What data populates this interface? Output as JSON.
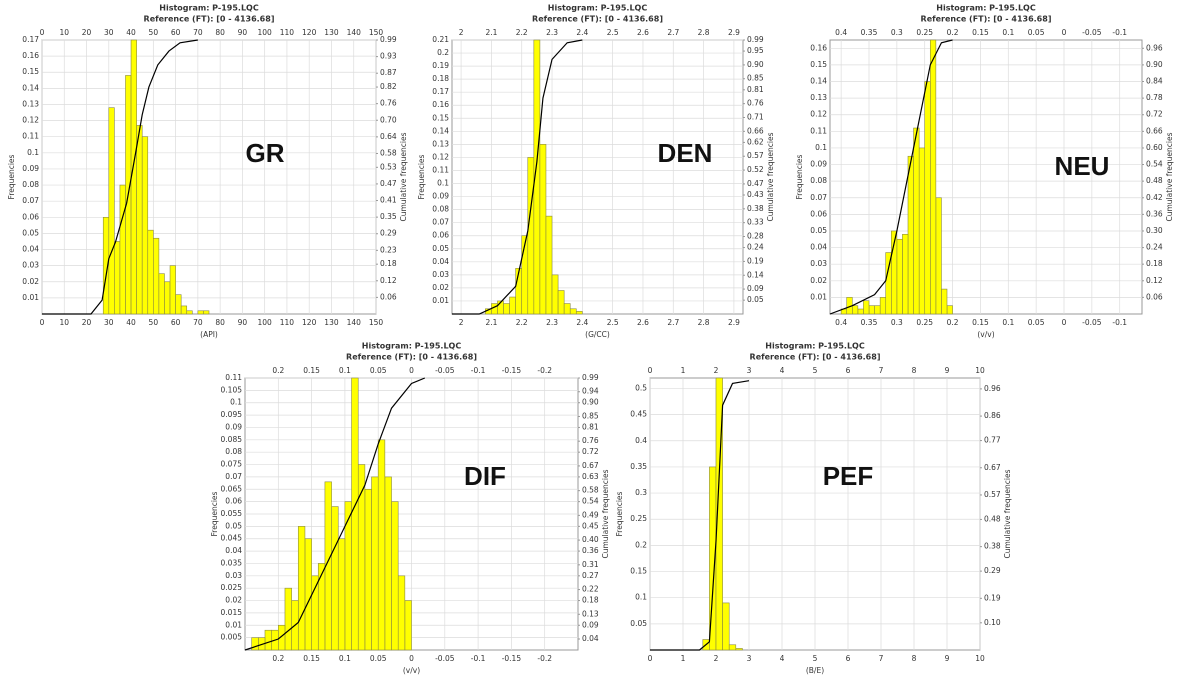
{
  "chart_data": [
    {
      "type": "histogram",
      "title": "Histogram: P-195.LQC",
      "subtitle": "Reference (FT): [0 - 4136.68]",
      "label": "GR",
      "x_label": "(API)",
      "y_label": "Frequencies",
      "y2_label": "Cumulative frequencies",
      "color": "#ffff00",
      "bins": [
        27.5,
        30,
        32.5,
        35,
        37.5,
        40,
        42.5,
        45,
        47.5,
        50,
        52.5,
        55,
        57.5,
        60,
        62.5,
        65,
        67.5,
        70,
        72.5,
        75
      ],
      "values": [
        0.06,
        0.128,
        0.045,
        0.08,
        0.148,
        0.17,
        0.117,
        0.11,
        0.052,
        0.047,
        0.025,
        0.02,
        0.03,
        0.012,
        0.005,
        0.002,
        0,
        0.002,
        0.002
      ],
      "line": {
        "axis": "y2",
        "color": "#000000",
        "x": [
          0,
          22,
          27,
          30,
          33,
          38,
          42,
          45,
          48,
          52,
          57,
          62,
          70
        ],
        "values": [
          0,
          0,
          0.05,
          0.2,
          0.26,
          0.4,
          0.58,
          0.72,
          0.82,
          0.9,
          0.95,
          0.98,
          0.99
        ]
      },
      "xlim": [
        0,
        150
      ],
      "xticks": [
        0,
        10,
        20,
        30,
        40,
        50,
        60,
        70,
        80,
        90,
        100,
        110,
        120,
        130,
        140,
        150
      ],
      "ylim": [
        0,
        0.17
      ],
      "yticks": [
        0.01,
        0.02,
        0.03,
        0.04,
        0.05,
        0.06,
        0.07,
        0.08,
        0.09,
        0.1,
        0.11,
        0.12,
        0.13,
        0.14,
        0.15,
        0.16,
        0.17
      ],
      "y2lim": [
        0,
        0.99
      ],
      "y2ticks": [
        0.06,
        0.12,
        0.18,
        0.23,
        0.29,
        0.35,
        0.41,
        0.47,
        0.53,
        0.58,
        0.64,
        {
          "value": 0.7,
          "label": "0.70"
        },
        0.76,
        0.82,
        0.87,
        0.93,
        0.99
      ],
      "grid": true
    },
    {
      "type": "histogram",
      "title": "Histogram: P-195.LQC",
      "subtitle": "Reference (FT): [0 - 4136.68]",
      "label": "DEN",
      "x_label": "(G/CC)",
      "y_label": "Frequencies",
      "y2_label": "Cumulative frequencies",
      "color": "#ffff00",
      "bins": [
        2.08,
        2.1,
        2.12,
        2.14,
        2.16,
        2.18,
        2.2,
        2.22,
        2.24,
        2.26,
        2.28,
        2.3,
        2.32,
        2.34,
        2.36,
        2.38,
        2.4
      ],
      "values": [
        0.004,
        0.008,
        0.01,
        0.008,
        0.013,
        0.035,
        0.06,
        0.12,
        0.21,
        0.13,
        0.075,
        0.03,
        0.018,
        0.008,
        0.004,
        0.002
      ],
      "line": {
        "axis": "y2",
        "color": "#000000",
        "x": [
          1.97,
          2.06,
          2.12,
          2.18,
          2.22,
          2.25,
          2.27,
          2.3,
          2.35,
          2.4
        ],
        "values": [
          0,
          0,
          0.03,
          0.1,
          0.3,
          0.55,
          0.78,
          0.92,
          0.98,
          0.99
        ]
      },
      "xlim": [
        1.97,
        2.93
      ],
      "xticks": [
        2,
        2.1,
        2.2,
        2.3,
        2.4,
        2.5,
        2.6,
        2.7,
        2.8,
        2.9
      ],
      "ylim": [
        0,
        0.21
      ],
      "yticks": [
        0.01,
        0.02,
        0.03,
        0.04,
        0.05,
        0.06,
        0.07,
        0.08,
        0.09,
        0.1,
        0.11,
        0.12,
        0.13,
        0.14,
        0.15,
        0.16,
        0.17,
        0.18,
        0.19,
        0.2,
        0.21
      ],
      "y2lim": [
        0,
        0.99
      ],
      "y2ticks": [
        0.05,
        0.09,
        0.14,
        0.19,
        0.24,
        0.28,
        0.33,
        0.38,
        0.43,
        0.47,
        0.52,
        0.57,
        0.62,
        0.66,
        0.71,
        0.76,
        0.81,
        0.85,
        {
          "value": 0.9,
          "label": "0.90"
        },
        0.95,
        0.99
      ],
      "grid": true
    },
    {
      "type": "histogram",
      "title": "Histogram: P-195.LQC",
      "subtitle": "Reference (FT): [0 - 4136.68]",
      "label": "NEU",
      "x_label": "(v/v)",
      "y_label": "Frequencies",
      "y2_label": "Cumulative frequencies",
      "color": "#ffff00",
      "bins": [
        0.2,
        0.21,
        0.22,
        0.23,
        0.24,
        0.25,
        0.26,
        0.27,
        0.28,
        0.29,
        0.3,
        0.31,
        0.32,
        0.33,
        0.34,
        0.35,
        0.36,
        0.37,
        0.38,
        0.39,
        0.4
      ],
      "values": [
        0.005,
        0.015,
        0.07,
        0.165,
        0.14,
        0.1,
        0.112,
        0.095,
        0.048,
        0.045,
        0.05,
        0.037,
        0.01,
        0.005,
        0.005,
        0.008,
        0.003,
        0.005,
        0.01,
        0.003
      ],
      "line": {
        "axis": "y2",
        "color": "#000000",
        "x": [
          0.42,
          0.38,
          0.34,
          0.32,
          0.3,
          0.28,
          0.26,
          0.24,
          0.22,
          0.2
        ],
        "values": [
          0,
          0.03,
          0.07,
          0.12,
          0.3,
          0.5,
          0.7,
          0.9,
          0.98,
          0.99
        ]
      },
      "xlim": [
        0.42,
        -0.14
      ],
      "xticks": [
        0.4,
        0.35,
        0.3,
        0.25,
        0.2,
        0.15,
        0.1,
        0.05,
        0,
        -0.05,
        -0.1
      ],
      "ylim": [
        0,
        0.165
      ],
      "yticks": [
        0.01,
        0.02,
        0.03,
        0.04,
        0.05,
        0.06,
        0.07,
        0.08,
        0.09,
        0.1,
        0.11,
        0.12,
        0.13,
        0.14,
        0.15,
        0.16
      ],
      "y2lim": [
        0,
        0.99
      ],
      "y2ticks": [
        0.06,
        0.12,
        0.18,
        0.24,
        {
          "value": 0.3,
          "label": "0.30"
        },
        0.36,
        0.42,
        0.48,
        0.54,
        {
          "value": 0.6,
          "label": "0.60"
        },
        0.66,
        0.72,
        0.78,
        0.84,
        {
          "value": 0.9,
          "label": "0.90"
        },
        0.96
      ],
      "grid": true
    },
    {
      "type": "histogram",
      "title": "Histogram: P-195.LQC",
      "subtitle": "Reference (FT): [0 - 4136.68]",
      "label": "DIF",
      "x_label": "(v/v)",
      "y_label": "Frequencies",
      "y2_label": "Cumulative frequencies",
      "color": "#ffff00",
      "bins": [
        0,
        0.01,
        0.02,
        0.03,
        0.04,
        0.05,
        0.06,
        0.07,
        0.08,
        0.09,
        0.1,
        0.11,
        0.12,
        0.13,
        0.14,
        0.15,
        0.16,
        0.17,
        0.18,
        0.19,
        0.2,
        0.21,
        0.22,
        0.23,
        0.24
      ],
      "values": [
        0.02,
        0.03,
        0.06,
        0.07,
        0.085,
        0.07,
        0.065,
        0.075,
        0.11,
        0.06,
        0.045,
        0.058,
        0.068,
        0.035,
        0.03,
        0.045,
        0.05,
        0.02,
        0.025,
        0.01,
        0.008,
        0.008,
        0.005,
        0.005
      ],
      "line": {
        "axis": "y2",
        "color": "#000000",
        "x": [
          0.25,
          0.2,
          0.17,
          0.13,
          0.1,
          0.07,
          0.05,
          0.03,
          0,
          -0.02
        ],
        "values": [
          0,
          0.04,
          0.1,
          0.3,
          0.45,
          0.6,
          0.75,
          0.88,
          0.97,
          0.99
        ]
      },
      "xlim": [
        0.25,
        -0.25
      ],
      "xticks": [
        0.2,
        0.15,
        0.1,
        0.05,
        0,
        -0.05,
        -0.1,
        -0.15,
        -0.2
      ],
      "ylim": [
        0,
        0.11
      ],
      "yticks": [
        0.005,
        0.01,
        0.015,
        0.02,
        0.025,
        0.03,
        0.035,
        0.04,
        0.045,
        0.05,
        0.055,
        0.06,
        0.065,
        0.07,
        0.075,
        0.08,
        0.085,
        0.09,
        0.095,
        0.1,
        0.105,
        0.11
      ],
      "y2lim": [
        0,
        0.99
      ],
      "y2ticks": [
        0.04,
        0.09,
        0.13,
        0.18,
        0.22,
        0.27,
        0.31,
        0.36,
        {
          "value": 0.4,
          "label": "0.40"
        },
        0.45,
        0.49,
        0.54,
        0.58,
        0.63,
        0.67,
        0.72,
        0.76,
        0.81,
        0.85,
        {
          "value": 0.9,
          "label": "0.90"
        },
        0.94,
        0.99
      ],
      "grid": true
    },
    {
      "type": "histogram",
      "title": "Histogram: P-195.LQC",
      "subtitle": "Reference (FT): [0 - 4136.68]",
      "label": "PEF",
      "x_label": "(B/E)",
      "y_label": "Frequencies",
      "y2_label": "Cumulative frequencies",
      "color": "#ffff00",
      "bins": [
        1.6,
        1.8,
        2.0,
        2.2,
        2.4,
        2.6,
        2.8
      ],
      "values": [
        0.02,
        0.35,
        0.52,
        0.09,
        0.01,
        0.003
      ],
      "line": {
        "axis": "y2",
        "color": "#000000",
        "x": [
          0,
          1.5,
          1.8,
          2,
          2.2,
          2.5,
          3
        ],
        "values": [
          0,
          0,
          0.03,
          0.4,
          0.9,
          0.98,
          0.99
        ]
      },
      "xlim": [
        0,
        10
      ],
      "xticks": [
        0,
        1,
        2,
        3,
        4,
        5,
        6,
        7,
        8,
        9,
        10
      ],
      "ylim": [
        0,
        0.52
      ],
      "yticks": [
        0.05,
        0.1,
        0.15,
        0.2,
        0.25,
        0.3,
        0.35,
        0.4,
        0.45,
        0.5
      ],
      "y2lim": [
        0,
        1
      ],
      "y2ticks": [
        {
          "value": 0.1,
          "label": "0.10"
        },
        0.19,
        0.29,
        0.38,
        0.48,
        0.57,
        0.67,
        0.77,
        0.86,
        0.96
      ],
      "grid": true
    }
  ]
}
